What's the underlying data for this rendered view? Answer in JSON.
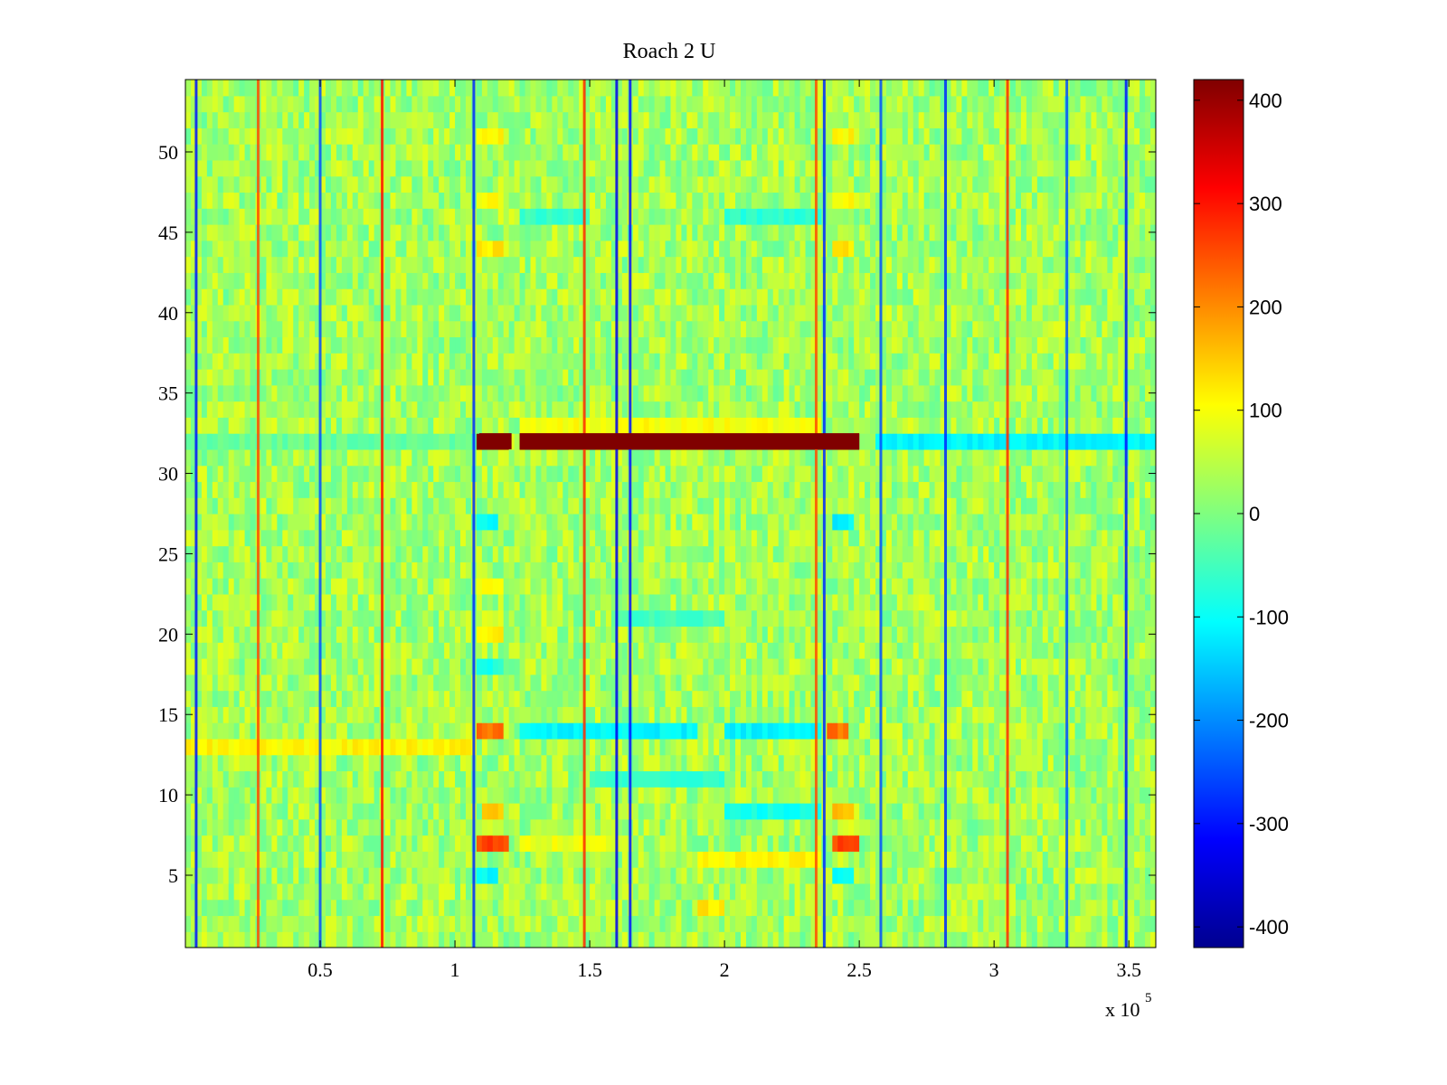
{
  "chart_data": {
    "type": "heatmap",
    "title": "Roach 2 U",
    "xlabel": "",
    "ylabel": "",
    "x_multiplier_label": "x 10",
    "x_multiplier_exponent": "5",
    "xlim": [
      0,
      360000
    ],
    "ylim": [
      0.5,
      54.5
    ],
    "xticks": [
      50000,
      100000,
      150000,
      200000,
      250000,
      300000,
      350000
    ],
    "xtick_labels": [
      "0.5",
      "1",
      "1.5",
      "2",
      "2.5",
      "3",
      "3.5"
    ],
    "yticks": [
      5,
      10,
      15,
      20,
      25,
      30,
      35,
      40,
      45,
      50
    ],
    "ytick_labels": [
      "5",
      "10",
      "15",
      "20",
      "25",
      "30",
      "35",
      "40",
      "45",
      "50"
    ],
    "colormap": "jet",
    "clim": [
      -420,
      420
    ],
    "colorbar_ticks": [
      400,
      300,
      200,
      100,
      0,
      -100,
      -200,
      -300,
      -400
    ],
    "colorbar_tick_labels": [
      "400",
      "300",
      "200",
      "100",
      "0",
      "-100",
      "-200",
      "-300",
      "-400"
    ],
    "background_value": 30,
    "noise_amplitude": 55,
    "rows": 54,
    "vertical_spikes": [
      {
        "x": 4000,
        "value": -300
      },
      {
        "x": 27000,
        "value": 250
      },
      {
        "x": 50000,
        "value": -250
      },
      {
        "x": 73000,
        "value": 300
      },
      {
        "x": 107000,
        "value": -280
      },
      {
        "x": 148000,
        "value": 280
      },
      {
        "x": 160000,
        "value": -330
      },
      {
        "x": 165000,
        "value": -300
      },
      {
        "x": 234000,
        "value": 250
      },
      {
        "x": 237000,
        "value": -280
      },
      {
        "x": 258000,
        "value": -250
      },
      {
        "x": 282000,
        "value": -280
      },
      {
        "x": 305000,
        "value": 280
      },
      {
        "x": 327000,
        "value": -250
      },
      {
        "x": 349000,
        "value": -300
      }
    ],
    "row_bands": [
      {
        "row": 32,
        "x_start": 109000,
        "x_end": 121000,
        "value": 420
      },
      {
        "row": 32,
        "x_start": 124000,
        "x_end": 250000,
        "value": 420
      },
      {
        "row": 32,
        "x_start": 0,
        "x_end": 109000,
        "value": -20
      },
      {
        "row": 32,
        "x_start": 256000,
        "x_end": 360000,
        "value": -110
      },
      {
        "row": 13,
        "x_start": 0,
        "x_end": 108000,
        "value": 110
      },
      {
        "row": 33,
        "x_start": 124000,
        "x_end": 237000,
        "value": 100
      },
      {
        "row": 14,
        "x_start": 109000,
        "x_end": 118000,
        "value": 220
      },
      {
        "row": 14,
        "x_start": 239000,
        "x_end": 247000,
        "value": 220
      },
      {
        "row": 7,
        "x_start": 109000,
        "x_end": 120000,
        "value": 260
      },
      {
        "row": 7,
        "x_start": 240000,
        "x_end": 250000,
        "value": 260
      },
      {
        "row": 14,
        "x_start": 124000,
        "x_end": 190000,
        "value": -110
      },
      {
        "row": 14,
        "x_start": 200000,
        "x_end": 237000,
        "value": -110
      },
      {
        "row": 27,
        "x_start": 109000,
        "x_end": 116000,
        "value": -110
      },
      {
        "row": 27,
        "x_start": 240000,
        "x_end": 248000,
        "value": -110
      },
      {
        "row": 44,
        "x_start": 109000,
        "x_end": 118000,
        "value": 120
      },
      {
        "row": 44,
        "x_start": 240000,
        "x_end": 248000,
        "value": 120
      },
      {
        "row": 51,
        "x_start": 109000,
        "x_end": 118000,
        "value": 110
      },
      {
        "row": 51,
        "x_start": 240000,
        "x_end": 249000,
        "value": 110
      },
      {
        "row": 23,
        "x_start": 109000,
        "x_end": 118000,
        "value": 110
      },
      {
        "row": 5,
        "x_start": 109000,
        "x_end": 116000,
        "value": -100
      },
      {
        "row": 5,
        "x_start": 240000,
        "x_end": 248000,
        "value": -100
      },
      {
        "row": 9,
        "x_start": 110000,
        "x_end": 118000,
        "value": 160
      },
      {
        "row": 9,
        "x_start": 240000,
        "x_end": 248000,
        "value": 160
      },
      {
        "row": 18,
        "x_start": 109000,
        "x_end": 118000,
        "value": -80
      },
      {
        "row": 20,
        "x_start": 109000,
        "x_end": 118000,
        "value": 120
      },
      {
        "row": 47,
        "x_start": 109000,
        "x_end": 118000,
        "value": 100
      },
      {
        "row": 47,
        "x_start": 240000,
        "x_end": 248000,
        "value": 100
      },
      {
        "row": 46,
        "x_start": 124000,
        "x_end": 150000,
        "value": -60
      },
      {
        "row": 46,
        "x_start": 200000,
        "x_end": 237000,
        "value": -70
      },
      {
        "row": 7,
        "x_start": 124000,
        "x_end": 160000,
        "value": 90
      },
      {
        "row": 6,
        "x_start": 190000,
        "x_end": 237000,
        "value": 110
      },
      {
        "row": 9,
        "x_start": 200000,
        "x_end": 237000,
        "value": -90
      },
      {
        "row": 3,
        "x_start": 190000,
        "x_end": 200000,
        "value": 120
      },
      {
        "row": 11,
        "x_start": 150000,
        "x_end": 200000,
        "value": -60
      },
      {
        "row": 21,
        "x_start": 160000,
        "x_end": 200000,
        "value": -50
      }
    ]
  }
}
